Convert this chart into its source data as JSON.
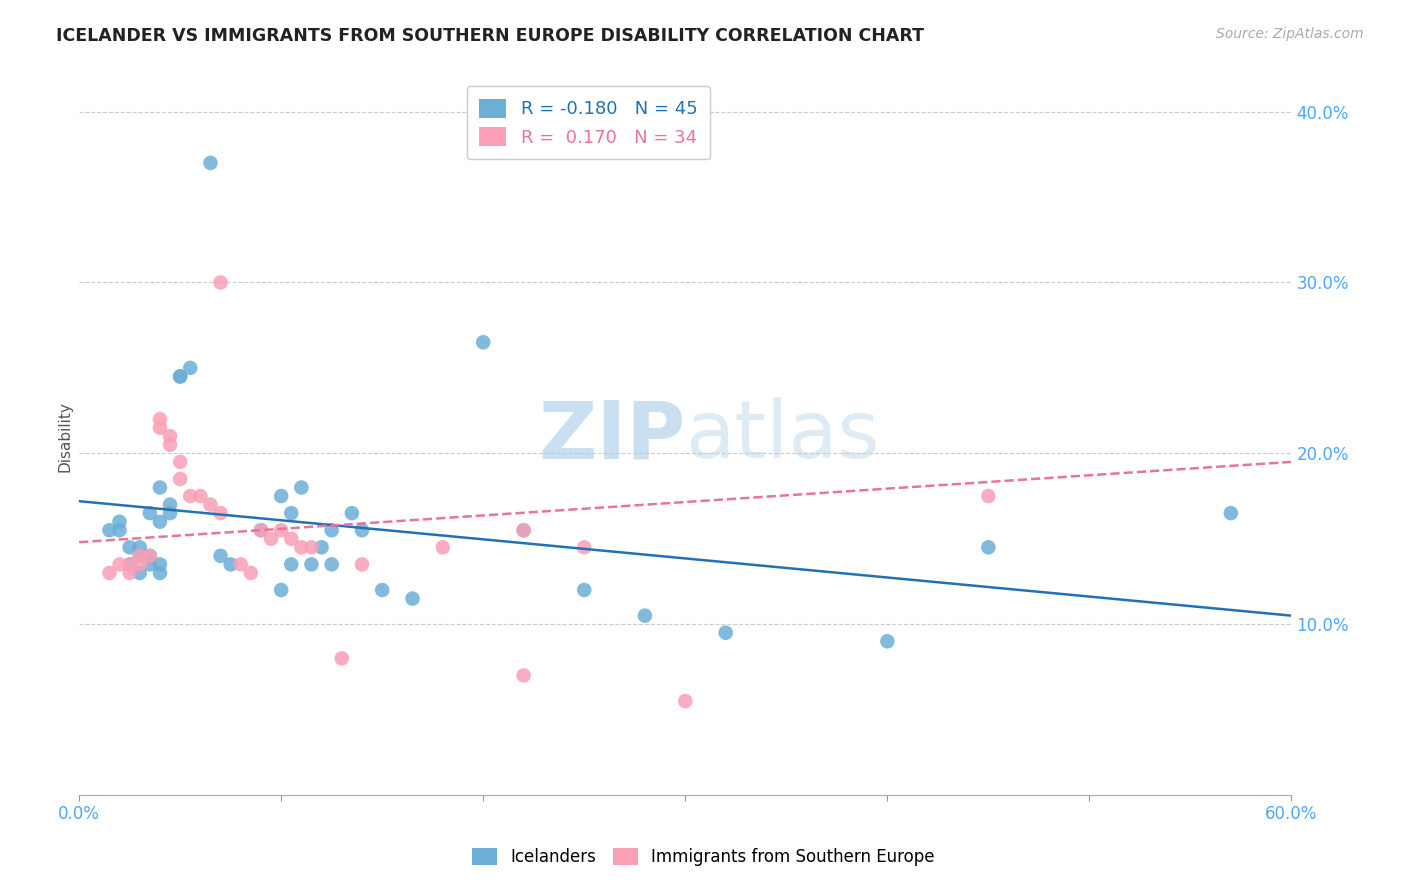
{
  "title": "ICELANDER VS IMMIGRANTS FROM SOUTHERN EUROPE DISABILITY CORRELATION CHART",
  "source": "Source: ZipAtlas.com",
  "ylabel": "Disability",
  "xlim": [
    0.0,
    0.6
  ],
  "ylim": [
    0.0,
    0.42
  ],
  "yticks": [
    0.1,
    0.2,
    0.3,
    0.4
  ],
  "ytick_labels": [
    "10.0%",
    "20.0%",
    "30.0%",
    "40.0%"
  ],
  "xticks": [
    0.0,
    0.1,
    0.2,
    0.3,
    0.4,
    0.5,
    0.6
  ],
  "xtick_labels": [
    "0.0%",
    "",
    "",
    "",
    "",
    "",
    "60.0%"
  ],
  "legend1_label": "Icelanders",
  "legend2_label": "Immigrants from Southern Europe",
  "r1": "-0.180",
  "n1": "45",
  "r2": "0.170",
  "n2": "34",
  "color1": "#6baed6",
  "color2": "#fa9fb5",
  "trendline_color1": "#2171b5",
  "trendline_color2": "#e8749a",
  "axis_color": "#4da6ff",
  "blue_scatter": [
    [
      0.015,
      0.155
    ],
    [
      0.02,
      0.16
    ],
    [
      0.02,
      0.155
    ],
    [
      0.025,
      0.145
    ],
    [
      0.025,
      0.135
    ],
    [
      0.03,
      0.13
    ],
    [
      0.03,
      0.14
    ],
    [
      0.03,
      0.145
    ],
    [
      0.035,
      0.14
    ],
    [
      0.035,
      0.135
    ],
    [
      0.035,
      0.165
    ],
    [
      0.04,
      0.16
    ],
    [
      0.04,
      0.135
    ],
    [
      0.04,
      0.13
    ],
    [
      0.04,
      0.18
    ],
    [
      0.045,
      0.17
    ],
    [
      0.045,
      0.165
    ],
    [
      0.05,
      0.245
    ],
    [
      0.05,
      0.245
    ],
    [
      0.055,
      0.25
    ],
    [
      0.065,
      0.37
    ],
    [
      0.07,
      0.14
    ],
    [
      0.075,
      0.135
    ],
    [
      0.09,
      0.155
    ],
    [
      0.1,
      0.175
    ],
    [
      0.105,
      0.165
    ],
    [
      0.105,
      0.135
    ],
    [
      0.11,
      0.18
    ],
    [
      0.115,
      0.135
    ],
    [
      0.12,
      0.145
    ],
    [
      0.125,
      0.155
    ],
    [
      0.125,
      0.135
    ],
    [
      0.135,
      0.165
    ],
    [
      0.14,
      0.155
    ],
    [
      0.15,
      0.12
    ],
    [
      0.165,
      0.115
    ],
    [
      0.2,
      0.265
    ],
    [
      0.22,
      0.155
    ],
    [
      0.25,
      0.12
    ],
    [
      0.28,
      0.105
    ],
    [
      0.32,
      0.095
    ],
    [
      0.4,
      0.09
    ],
    [
      0.45,
      0.145
    ],
    [
      0.57,
      0.165
    ],
    [
      0.1,
      0.12
    ]
  ],
  "pink_scatter": [
    [
      0.015,
      0.13
    ],
    [
      0.02,
      0.135
    ],
    [
      0.025,
      0.13
    ],
    [
      0.025,
      0.135
    ],
    [
      0.03,
      0.14
    ],
    [
      0.03,
      0.135
    ],
    [
      0.035,
      0.14
    ],
    [
      0.04,
      0.22
    ],
    [
      0.04,
      0.215
    ],
    [
      0.045,
      0.21
    ],
    [
      0.045,
      0.205
    ],
    [
      0.05,
      0.195
    ],
    [
      0.05,
      0.185
    ],
    [
      0.055,
      0.175
    ],
    [
      0.06,
      0.175
    ],
    [
      0.065,
      0.17
    ],
    [
      0.07,
      0.165
    ],
    [
      0.08,
      0.135
    ],
    [
      0.085,
      0.13
    ],
    [
      0.07,
      0.3
    ],
    [
      0.09,
      0.155
    ],
    [
      0.095,
      0.15
    ],
    [
      0.1,
      0.155
    ],
    [
      0.105,
      0.15
    ],
    [
      0.11,
      0.145
    ],
    [
      0.115,
      0.145
    ],
    [
      0.14,
      0.135
    ],
    [
      0.18,
      0.145
    ],
    [
      0.22,
      0.155
    ],
    [
      0.25,
      0.145
    ],
    [
      0.13,
      0.08
    ],
    [
      0.22,
      0.07
    ],
    [
      0.3,
      0.055
    ],
    [
      0.45,
      0.175
    ]
  ],
  "trendline_x_start": 0.0,
  "trendline_x_end": 0.6,
  "blue_trend_y_start": 0.172,
  "blue_trend_y_end": 0.105,
  "pink_trend_y_start": 0.148,
  "pink_trend_y_end": 0.195
}
